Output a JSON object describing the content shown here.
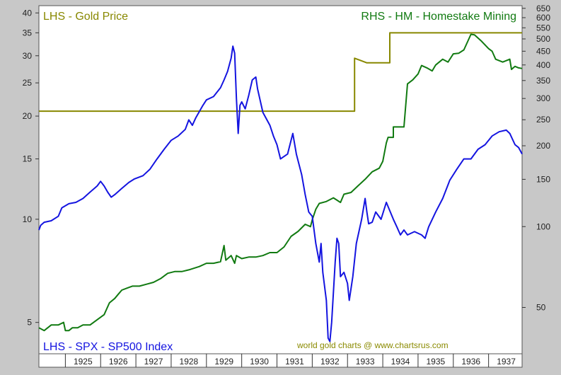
{
  "chart_data": {
    "type": "line",
    "title": "",
    "colors": {
      "gold": "#888800",
      "hm": "#117a11",
      "spx": "#1414e0",
      "credit": "#8a8a00",
      "plot_bg": "#ffffff",
      "frame_bg": "#c8c8c8"
    },
    "x_range": [
      1924.25,
      1937.95
    ],
    "left_axis": {
      "scale": "log",
      "range": [
        4.05,
        42
      ],
      "ticks": [
        5,
        10,
        15,
        20,
        25,
        30,
        35,
        40
      ]
    },
    "right_axis": {
      "scale": "log",
      "range": [
        33.6,
        665
      ],
      "ticks": [
        50,
        100,
        150,
        200,
        250,
        300,
        350,
        400,
        450,
        500,
        550,
        600,
        650
      ]
    },
    "x_ticks": [
      {
        "year": 1925,
        "label": "1925"
      },
      {
        "year": 1926,
        "label": "1926"
      },
      {
        "year": 1927,
        "label": "1927"
      },
      {
        "year": 1928,
        "label": "1928"
      },
      {
        "year": 1929,
        "label": "1929"
      },
      {
        "year": 1930,
        "label": "1930"
      },
      {
        "year": 1931,
        "label": "1931"
      },
      {
        "year": 1932,
        "label": "1932"
      },
      {
        "year": 1933,
        "label": "1933"
      },
      {
        "year": 1934,
        "label": "1934"
      },
      {
        "year": 1935,
        "label": "1935"
      },
      {
        "year": 1936,
        "label": "1936"
      },
      {
        "year": 1937,
        "label": "1937"
      }
    ],
    "labels": {
      "gold": "LHS - Gold Price",
      "hm": "RHS - HM - Homestake Mining",
      "spx": "LHS - SPX - SP500 Index",
      "credit": "world gold charts @ www.chartsrus.com"
    },
    "series": [
      {
        "key": "gold",
        "axis": "left",
        "step": true,
        "points": [
          [
            1924.25,
            20.67
          ],
          [
            1933.2,
            20.67
          ],
          [
            1933.2,
            29.5
          ],
          [
            1933.55,
            28.6
          ],
          [
            1934.2,
            28.6
          ],
          [
            1934.2,
            35.0
          ],
          [
            1937.95,
            35.0
          ]
        ]
      },
      {
        "key": "hm",
        "axis": "right",
        "points": [
          [
            1924.25,
            42
          ],
          [
            1924.4,
            41
          ],
          [
            1924.6,
            43
          ],
          [
            1924.8,
            43
          ],
          [
            1924.95,
            44
          ],
          [
            1925.0,
            41
          ],
          [
            1925.1,
            41
          ],
          [
            1925.2,
            42
          ],
          [
            1925.35,
            42
          ],
          [
            1925.5,
            43
          ],
          [
            1925.7,
            43
          ],
          [
            1925.9,
            45
          ],
          [
            1926.1,
            47
          ],
          [
            1926.25,
            52
          ],
          [
            1926.4,
            54
          ],
          [
            1926.5,
            56
          ],
          [
            1926.6,
            58
          ],
          [
            1926.75,
            59
          ],
          [
            1926.9,
            60
          ],
          [
            1927.1,
            60
          ],
          [
            1927.3,
            61
          ],
          [
            1927.5,
            62
          ],
          [
            1927.7,
            64
          ],
          [
            1927.9,
            67
          ],
          [
            1928.1,
            68
          ],
          [
            1928.3,
            68
          ],
          [
            1928.5,
            69
          ],
          [
            1928.8,
            71
          ],
          [
            1929.0,
            73
          ],
          [
            1929.2,
            73
          ],
          [
            1929.4,
            74
          ],
          [
            1929.5,
            85
          ],
          [
            1929.55,
            75
          ],
          [
            1929.7,
            78
          ],
          [
            1929.8,
            73
          ],
          [
            1929.85,
            78
          ],
          [
            1930.0,
            76
          ],
          [
            1930.2,
            77
          ],
          [
            1930.4,
            77
          ],
          [
            1930.6,
            78
          ],
          [
            1930.8,
            80
          ],
          [
            1931.0,
            80
          ],
          [
            1931.2,
            84
          ],
          [
            1931.4,
            92
          ],
          [
            1931.6,
            96
          ],
          [
            1931.8,
            102
          ],
          [
            1931.95,
            100
          ],
          [
            1932.0,
            106
          ],
          [
            1932.1,
            116
          ],
          [
            1932.2,
            122
          ],
          [
            1932.4,
            124
          ],
          [
            1932.6,
            128
          ],
          [
            1932.8,
            123
          ],
          [
            1932.9,
            132
          ],
          [
            1933.1,
            134
          ],
          [
            1933.3,
            142
          ],
          [
            1933.5,
            150
          ],
          [
            1933.7,
            160
          ],
          [
            1933.9,
            165
          ],
          [
            1934.0,
            175
          ],
          [
            1934.1,
            205
          ],
          [
            1934.15,
            215
          ],
          [
            1934.3,
            215
          ],
          [
            1934.3,
            235
          ],
          [
            1934.6,
            235
          ],
          [
            1934.7,
            340
          ],
          [
            1934.85,
            352
          ],
          [
            1935.0,
            370
          ],
          [
            1935.1,
            398
          ],
          [
            1935.25,
            390
          ],
          [
            1935.4,
            380
          ],
          [
            1935.5,
            400
          ],
          [
            1935.7,
            420
          ],
          [
            1935.85,
            410
          ],
          [
            1936.0,
            440
          ],
          [
            1936.15,
            442
          ],
          [
            1936.3,
            455
          ],
          [
            1936.5,
            520
          ],
          [
            1936.6,
            518
          ],
          [
            1936.8,
            490
          ],
          [
            1937.0,
            460
          ],
          [
            1937.1,
            450
          ],
          [
            1937.2,
            420
          ],
          [
            1937.4,
            410
          ],
          [
            1937.6,
            420
          ],
          [
            1937.65,
            385
          ],
          [
            1937.75,
            395
          ],
          [
            1937.85,
            390
          ],
          [
            1937.95,
            388
          ]
        ]
      },
      {
        "key": "spx",
        "axis": "left",
        "points": [
          [
            1924.25,
            9.3
          ],
          [
            1924.3,
            9.6
          ],
          [
            1924.4,
            9.8
          ],
          [
            1924.6,
            9.9
          ],
          [
            1924.8,
            10.2
          ],
          [
            1924.9,
            10.8
          ],
          [
            1925.1,
            11.1
          ],
          [
            1925.3,
            11.2
          ],
          [
            1925.5,
            11.5
          ],
          [
            1925.7,
            12.0
          ],
          [
            1925.9,
            12.5
          ],
          [
            1926.0,
            12.9
          ],
          [
            1926.1,
            12.5
          ],
          [
            1926.2,
            12.0
          ],
          [
            1926.3,
            11.6
          ],
          [
            1926.4,
            11.8
          ],
          [
            1926.6,
            12.3
          ],
          [
            1926.8,
            12.8
          ],
          [
            1926.95,
            13.1
          ],
          [
            1927.2,
            13.4
          ],
          [
            1927.4,
            14.0
          ],
          [
            1927.6,
            15.0
          ],
          [
            1927.8,
            16.0
          ],
          [
            1928.0,
            17.0
          ],
          [
            1928.2,
            17.5
          ],
          [
            1928.4,
            18.3
          ],
          [
            1928.5,
            19.5
          ],
          [
            1928.6,
            18.8
          ],
          [
            1928.7,
            19.8
          ],
          [
            1928.9,
            21.5
          ],
          [
            1929.0,
            22.3
          ],
          [
            1929.2,
            22.8
          ],
          [
            1929.4,
            24.2
          ],
          [
            1929.5,
            25.5
          ],
          [
            1929.6,
            27.0
          ],
          [
            1929.7,
            29.5
          ],
          [
            1929.75,
            32.0
          ],
          [
            1929.8,
            30.5
          ],
          [
            1929.85,
            22.5
          ],
          [
            1929.9,
            17.8
          ],
          [
            1929.95,
            21.5
          ],
          [
            1930.0,
            22.0
          ],
          [
            1930.1,
            21.0
          ],
          [
            1930.2,
            23.0
          ],
          [
            1930.3,
            25.5
          ],
          [
            1930.4,
            26.0
          ],
          [
            1930.45,
            24.0
          ],
          [
            1930.6,
            20.5
          ],
          [
            1930.8,
            18.8
          ],
          [
            1930.9,
            17.5
          ],
          [
            1931.0,
            16.5
          ],
          [
            1931.1,
            15.0
          ],
          [
            1931.3,
            15.5
          ],
          [
            1931.45,
            17.8
          ],
          [
            1931.55,
            15.5
          ],
          [
            1931.7,
            13.5
          ],
          [
            1931.8,
            11.8
          ],
          [
            1931.9,
            10.5
          ],
          [
            1932.0,
            10.2
          ],
          [
            1932.1,
            8.5
          ],
          [
            1932.2,
            7.5
          ],
          [
            1932.25,
            8.5
          ],
          [
            1932.3,
            7.0
          ],
          [
            1932.4,
            5.8
          ],
          [
            1932.45,
            4.5
          ],
          [
            1932.5,
            4.4
          ],
          [
            1932.55,
            5.0
          ],
          [
            1932.65,
            7.5
          ],
          [
            1932.7,
            8.8
          ],
          [
            1932.75,
            8.5
          ],
          [
            1932.8,
            6.8
          ],
          [
            1932.9,
            7.0
          ],
          [
            1933.0,
            6.5
          ],
          [
            1933.05,
            5.8
          ],
          [
            1933.15,
            6.8
          ],
          [
            1933.25,
            8.5
          ],
          [
            1933.4,
            10.0
          ],
          [
            1933.5,
            11.5
          ],
          [
            1933.55,
            10.5
          ],
          [
            1933.6,
            9.7
          ],
          [
            1933.7,
            9.8
          ],
          [
            1933.8,
            10.5
          ],
          [
            1933.95,
            10.0
          ],
          [
            1934.1,
            11.2
          ],
          [
            1934.3,
            10.0
          ],
          [
            1934.4,
            9.5
          ],
          [
            1934.5,
            9.0
          ],
          [
            1934.6,
            9.3
          ],
          [
            1934.7,
            9.0
          ],
          [
            1934.9,
            9.2
          ],
          [
            1935.1,
            9.0
          ],
          [
            1935.2,
            8.8
          ],
          [
            1935.3,
            9.5
          ],
          [
            1935.5,
            10.5
          ],
          [
            1935.7,
            11.5
          ],
          [
            1935.9,
            13.0
          ],
          [
            1936.1,
            14.0
          ],
          [
            1936.3,
            15.0
          ],
          [
            1936.5,
            15.0
          ],
          [
            1936.7,
            16.0
          ],
          [
            1936.9,
            16.5
          ],
          [
            1937.1,
            17.5
          ],
          [
            1937.3,
            18.0
          ],
          [
            1937.5,
            18.2
          ],
          [
            1937.6,
            17.8
          ],
          [
            1937.75,
            16.5
          ],
          [
            1937.85,
            16.2
          ],
          [
            1937.95,
            15.5
          ]
        ]
      }
    ]
  }
}
